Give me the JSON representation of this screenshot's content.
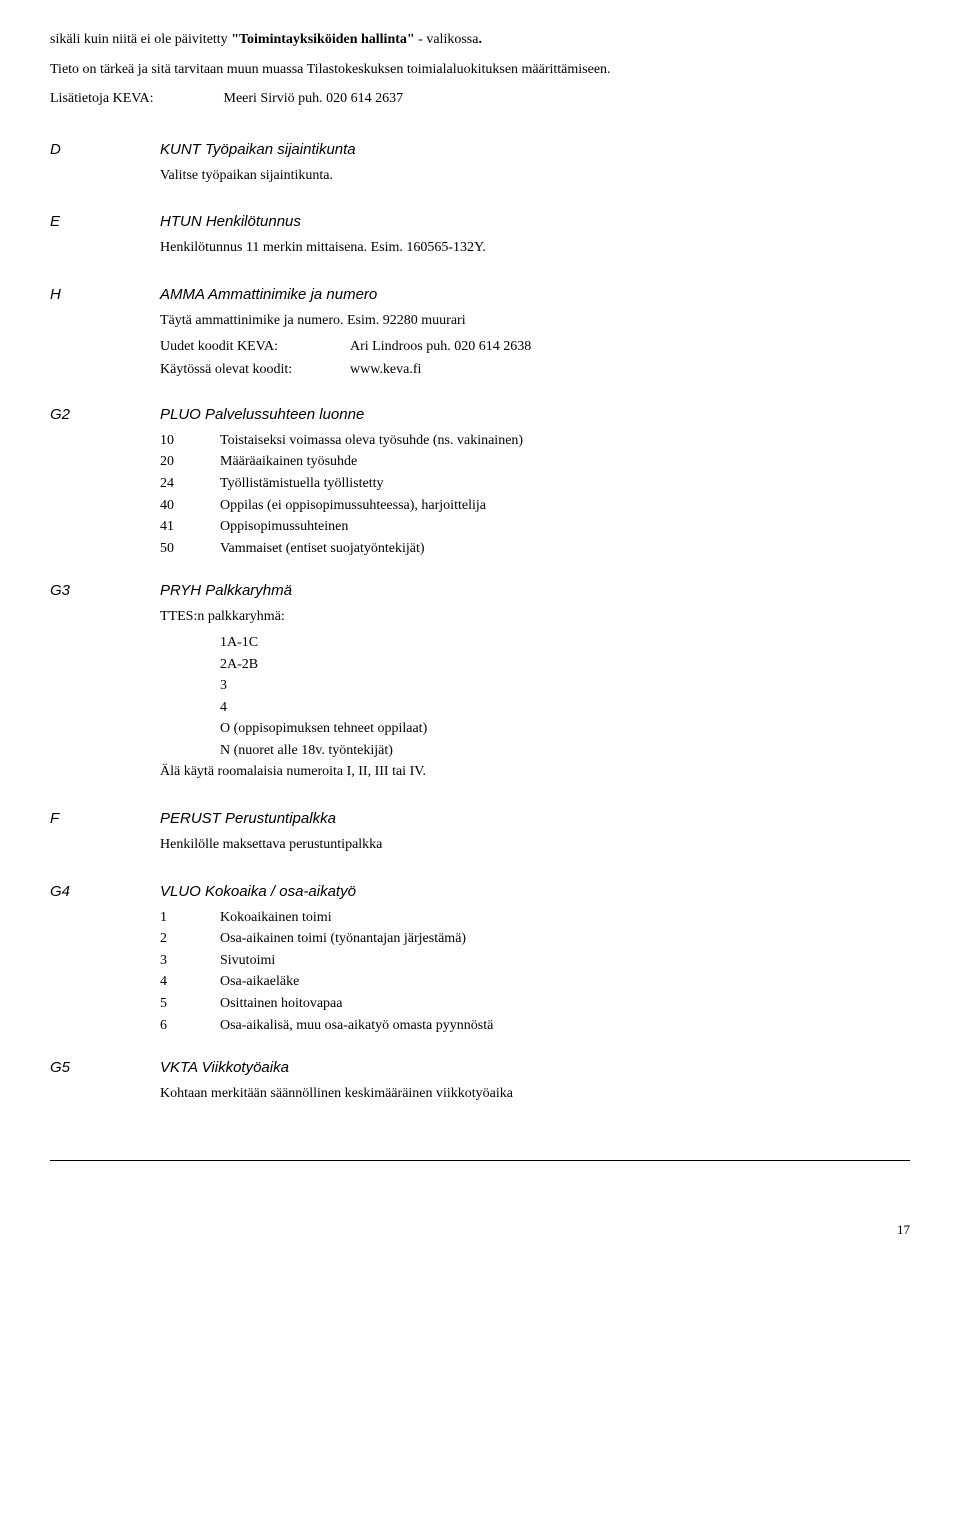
{
  "intro": [
    "sikäli kuin niitä ei ole päivitetty \"Toimintayksiköiden hallinta\" - valikossa.",
    "Tieto on tärkeä ja sitä tarvitaan muun muassa Tilastokeskuksen toimialaluokituksen määrittämiseen."
  ],
  "lisatietoja": {
    "label": "Lisätietoja KEVA:",
    "value": "Meeri Sirviö puh. 020 614 2637"
  },
  "sections": [
    {
      "letter": "D",
      "heading": "KUNT Työpaikan sijaintikunta",
      "body": [
        "Valitse työpaikan sijaintikunta."
      ]
    },
    {
      "letter": "E",
      "heading": "HTUN Henkilötunnus",
      "body": [
        "Henkilötunnus 11 merkin mittaisena. Esim. 160565-132Y."
      ]
    },
    {
      "letter": "H",
      "heading": "AMMA Ammattinimike ja numero",
      "body": [
        "Täytä ammattinimike ja numero. Esim. 92280 muurari"
      ],
      "kv": [
        {
          "label": "Uudet koodit KEVA:",
          "value": "Ari Lindroos puh. 020 614 2638"
        },
        {
          "label": "Käytössä olevat koodit:",
          "value": "www.keva.fi"
        }
      ]
    },
    {
      "letter": "G2",
      "heading": "PLUO Palvelussuhteen luonne",
      "list": [
        {
          "code": "10",
          "label": "Toistaiseksi voimassa oleva työsuhde (ns. vakinainen)"
        },
        {
          "code": "20",
          "label": "Määräaikainen työsuhde"
        },
        {
          "code": "24",
          "label": "Työllistämistuella työllistetty"
        },
        {
          "code": "40",
          "label": "Oppilas (ei oppisopimussuhteessa), harjoittelija"
        },
        {
          "code": "41",
          "label": "Oppisopimussuhteinen"
        },
        {
          "code": "50",
          "label": "Vammaiset (entiset suojatyöntekijät)"
        }
      ]
    },
    {
      "letter": "G3",
      "heading": "PRYH Palkkaryhmä",
      "body": [
        "TTES:n palkkaryhmä:"
      ],
      "indent": [
        "1A-1C",
        "2A-2B",
        "3",
        "4",
        "O (oppisopimuksen tehneet oppilaat)",
        "N (nuoret alle 18v. työntekijät)"
      ],
      "after": [
        "Älä käytä roomalaisia numeroita I, II, III tai IV."
      ]
    },
    {
      "letter": "F",
      "heading": "PERUST Perustuntipalkka",
      "body": [
        "Henkilölle maksettava perustuntipalkka"
      ]
    },
    {
      "letter": "G4",
      "heading": "VLUO Kokoaika / osa-aikatyö",
      "list": [
        {
          "code": "1",
          "label": "Kokoaikainen toimi"
        },
        {
          "code": "2",
          "label": "Osa-aikainen toimi (työnantajan järjestämä)"
        },
        {
          "code": "3",
          "label": "Sivutoimi"
        },
        {
          "code": "4",
          "label": "Osa-aikaeläke"
        },
        {
          "code": "5",
          "label": "Osittainen hoitovapaa"
        },
        {
          "code": "6",
          "label": "Osa-aikalisä, muu osa-aikatyö omasta pyynnöstä"
        }
      ]
    },
    {
      "letter": "G5",
      "heading": "VKTA Viikkotyöaika",
      "body": [
        "Kohtaan merkitään säännöllinen keskimääräinen viikkotyöaika"
      ]
    }
  ],
  "pageNumber": "17"
}
